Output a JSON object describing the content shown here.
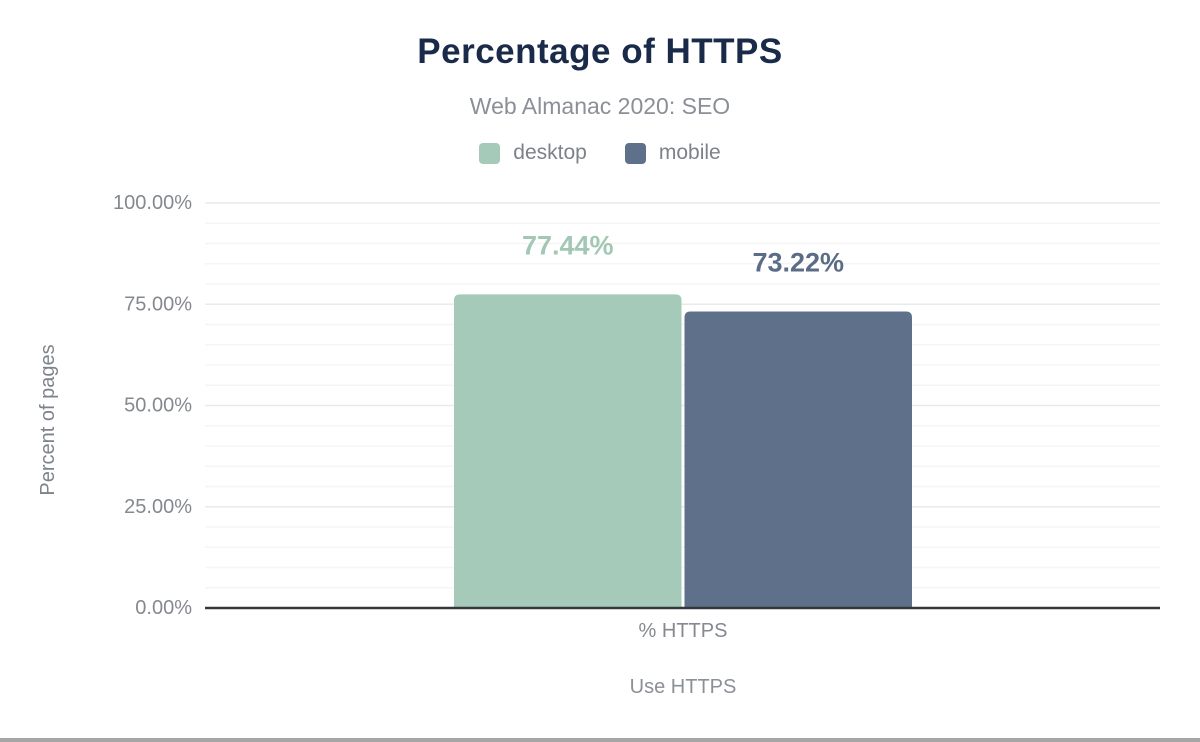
{
  "page": {
    "background": "#ffffff",
    "bottom_bar_color": "#a6a6a6"
  },
  "chart_data": {
    "type": "bar",
    "title": "Percentage of HTTPS",
    "subtitle": "Web Almanac 2020: SEO",
    "categories": [
      "% HTTPS"
    ],
    "series": [
      {
        "name": "desktop",
        "values": [
          77.44
        ],
        "value_labels": [
          "77.44%"
        ],
        "color": "#a6cab9",
        "label_color": "#a2c8b4"
      },
      {
        "name": "mobile",
        "values": [
          73.22
        ],
        "value_labels": [
          "73.22%"
        ],
        "color": "#5f718a",
        "label_color": "#5b6d86"
      }
    ],
    "xlabel": "Use HTTPS",
    "ylabel": "Percent of pages",
    "ylim": [
      0,
      100
    ],
    "y_ticks": [
      {
        "value": 0,
        "label": "0.00%"
      },
      {
        "value": 25,
        "label": "25.00%"
      },
      {
        "value": 50,
        "label": "50.00%"
      },
      {
        "value": 75,
        "label": "75.00%"
      },
      {
        "value": 100,
        "label": "100.00%"
      }
    ],
    "y_minor_step": 5,
    "y_major_step": 25,
    "grid": true,
    "legend_position": "top",
    "colors": {
      "title": "#1a2b49",
      "subtitle": "#8b9097",
      "axis_line": "#34383c",
      "tick_label": "#85898f",
      "axis_title": "#7e838b",
      "grid_minor": "#f5f5f6",
      "grid_major": "#e9eaec"
    }
  }
}
